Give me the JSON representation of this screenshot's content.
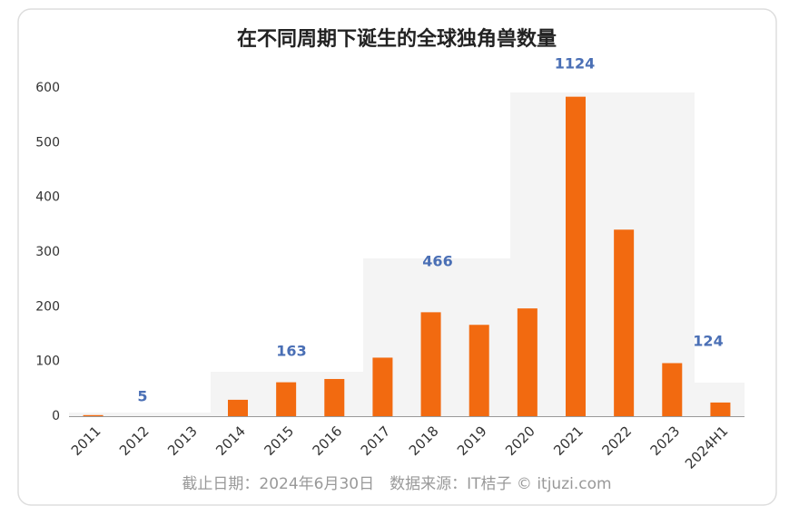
{
  "chart_data": {
    "type": "bar",
    "title": "在不同周期下诞生的全球独角兽数量",
    "categories": [
      "2011",
      "2012",
      "2013",
      "2014",
      "2015",
      "2016",
      "2017",
      "2018",
      "2019",
      "2020",
      "2021",
      "2022",
      "2023",
      "2024H1"
    ],
    "values": [
      2,
      0,
      0,
      30,
      62,
      68,
      107,
      190,
      167,
      197,
      584,
      341,
      97,
      25
    ],
    "color": "#f26a10",
    "ylim": [
      0,
      600
    ],
    "yticks": [
      0,
      100,
      200,
      300,
      400,
      500,
      600
    ],
    "grid": false,
    "annotations": [
      "1124",
      "5",
      "163",
      "466",
      "124"
    ],
    "source": "截止日期：2024年6月30日　数据来源：IT桔子 © itjuzi.com"
  }
}
